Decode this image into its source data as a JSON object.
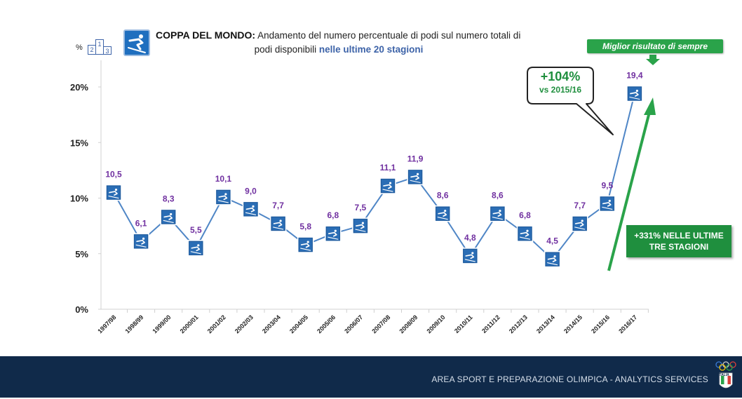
{
  "title": {
    "bold": "COPPA DEL MONDO:",
    "line1_rest": " Andamento  del numero  percentuale di podi sul numero  totali di",
    "line2_start": "podi disponibili ",
    "line2_highlight": "nelle ultime 20 stagioni"
  },
  "podium_icon": {
    "unit": "%",
    "labels": [
      "2",
      "1",
      "3"
    ]
  },
  "best_label": "Miglior risultato di sempre",
  "bubble": {
    "big": "+104%",
    "small": "vs 2015/16"
  },
  "box331": {
    "line1": "+331% NELLE ULTIME",
    "line2": "TRE STAGIONI"
  },
  "footer": {
    "text": "AREA SPORT E PREPARAZIONE OLIMPICA - ANALYTICS SERVICES",
    "logo_text": "ITALIA"
  },
  "colors": {
    "line": "#4f86c6",
    "marker": "#2a6db5",
    "label": "#7030a0",
    "accent_green": "#2aa34a",
    "footer_bg": "#102a4a"
  },
  "icons": [
    "podium-icon",
    "skier-icon"
  ],
  "chart_data": {
    "type": "line",
    "categories": [
      "1997/98",
      "1998/99",
      "1999/00",
      "2000/01",
      "2001/02",
      "2002/03",
      "2003/04",
      "2004/05",
      "2005/06",
      "2006/07",
      "2007/08",
      "2008/09",
      "2009/10",
      "2010/11",
      "2011/12",
      "2012/13",
      "2013/14",
      "2014/15",
      "2015/16",
      "2016/17"
    ],
    "values": [
      10.5,
      6.1,
      8.3,
      5.5,
      10.1,
      9.0,
      7.7,
      5.8,
      6.8,
      7.5,
      11.1,
      11.9,
      8.6,
      4.8,
      8.6,
      6.8,
      4.5,
      7.7,
      9.5,
      19.4
    ],
    "value_labels": [
      "10,5",
      "6,1",
      "8,3",
      "5,5",
      "10,1",
      "9,0",
      "7,7",
      "5,8",
      "6,8",
      "7,5",
      "11,1",
      "11,9",
      "8,6",
      "4,8",
      "8,6",
      "6,8",
      "4,5",
      "7,7",
      "9,5",
      "19,4"
    ],
    "y_ticks": [
      "0%",
      "5%",
      "10%",
      "15%",
      "20%"
    ],
    "y_tick_values": [
      0,
      5,
      10,
      15,
      20
    ],
    "ylim": [
      0,
      20
    ],
    "marker": "skier-icon",
    "grid": false
  }
}
